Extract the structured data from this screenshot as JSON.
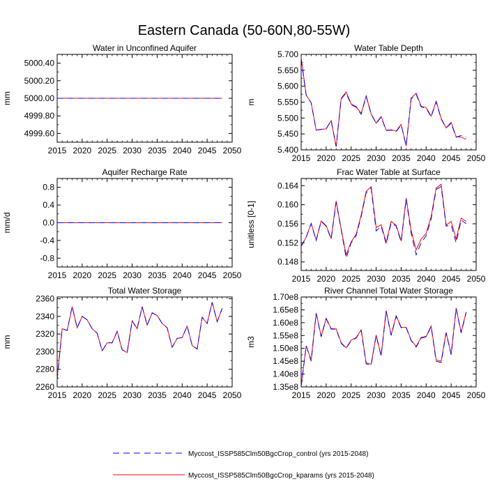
{
  "figure": {
    "title": "Eastern Canada (50-60N,80-55W)"
  },
  "legend": {
    "entries": [
      {
        "label": "Myccost_ISSP585Clm50BgcCrop_control (yrs 2015-2048)",
        "color": "#0000ff",
        "dash": "dashed"
      },
      {
        "label": "Myccost_ISSP585Clm50BgcCrop_kparams (yrs 2015-2048)",
        "color": "#ff0000",
        "dash": "solid"
      }
    ]
  },
  "chart_data": [
    {
      "id": "aquifer",
      "type": "line",
      "title": "Water in Unconfined Aquifer",
      "xlabel": "",
      "ylabel": "mm",
      "xlim": [
        2015,
        2050
      ],
      "ylim": [
        4999.5,
        5000.5
      ],
      "xticks": [
        2015,
        2020,
        2025,
        2030,
        2035,
        2040,
        2045,
        2050
      ],
      "yticks": [
        4999.6,
        4999.8,
        5000.0,
        5000.2,
        5000.4
      ],
      "ytick_labels": [
        "4999.60",
        "4999.80",
        "5000.00",
        "5000.20",
        "5000.40"
      ],
      "x_start": 2015,
      "series": [
        {
          "name": "Myccost_ISSP585Clm50BgcCrop_control",
          "values": [
            5000,
            5000,
            5000,
            5000,
            5000,
            5000,
            5000,
            5000,
            5000,
            5000,
            5000,
            5000,
            5000,
            5000,
            5000,
            5000,
            5000,
            5000,
            5000,
            5000,
            5000,
            5000,
            5000,
            5000,
            5000,
            5000,
            5000,
            5000,
            5000,
            5000,
            5000,
            5000,
            5000,
            5000
          ]
        },
        {
          "name": "Myccost_ISSP585Clm50BgcCrop_kparams",
          "values": [
            5000,
            5000,
            5000,
            5000,
            5000,
            5000,
            5000,
            5000,
            5000,
            5000,
            5000,
            5000,
            5000,
            5000,
            5000,
            5000,
            5000,
            5000,
            5000,
            5000,
            5000,
            5000,
            5000,
            5000,
            5000,
            5000,
            5000,
            5000,
            5000,
            5000,
            5000,
            5000,
            5000,
            5000
          ]
        }
      ]
    },
    {
      "id": "wtd",
      "type": "line",
      "title": "Water Table Depth",
      "xlabel": "",
      "ylabel": "m",
      "xlim": [
        2015,
        2050
      ],
      "ylim": [
        5.4,
        5.7
      ],
      "xticks": [
        2015,
        2020,
        2025,
        2030,
        2035,
        2040,
        2045,
        2050
      ],
      "yticks": [
        5.4,
        5.45,
        5.5,
        5.55,
        5.6,
        5.65,
        5.7
      ],
      "ytick_labels": [
        "5.400",
        "5.450",
        "5.500",
        "5.550",
        "5.600",
        "5.650",
        "5.700"
      ],
      "x_start": 2015,
      "series": [
        {
          "name": "Myccost_ISSP585Clm50BgcCrop_control",
          "values": [
            5.685,
            5.572,
            5.548,
            5.462,
            5.464,
            5.466,
            5.492,
            5.411,
            5.56,
            5.579,
            5.542,
            5.534,
            5.512,
            5.568,
            5.512,
            5.483,
            5.503,
            5.461,
            5.462,
            5.457,
            5.479,
            5.413,
            5.56,
            5.575,
            5.535,
            5.531,
            5.504,
            5.551,
            5.497,
            5.469,
            5.484,
            5.44,
            5.445,
            5.44
          ]
        },
        {
          "name": "Myccost_ISSP585Clm50BgcCrop_kparams",
          "values": [
            5.69,
            5.572,
            5.548,
            5.462,
            5.465,
            5.466,
            5.492,
            5.41,
            5.562,
            5.582,
            5.544,
            5.536,
            5.514,
            5.57,
            5.513,
            5.484,
            5.505,
            5.462,
            5.463,
            5.459,
            5.48,
            5.412,
            5.563,
            5.578,
            5.537,
            5.533,
            5.506,
            5.553,
            5.499,
            5.469,
            5.487,
            5.441,
            5.44,
            5.433
          ]
        }
      ]
    },
    {
      "id": "recharge",
      "type": "line",
      "title": "Aquifer Recharge Rate",
      "xlabel": "",
      "ylabel": "mm/d",
      "xlim": [
        2015,
        2050
      ],
      "ylim": [
        -1.0,
        1.0
      ],
      "xticks": [
        2015,
        2020,
        2025,
        2030,
        2035,
        2040,
        2045,
        2050
      ],
      "yticks": [
        -0.8,
        -0.4,
        0.0,
        0.4,
        0.8
      ],
      "ytick_labels": [
        "-0.8",
        "-0.4",
        "0.0",
        "0.4",
        "0.8"
      ],
      "x_start": 2015,
      "series": [
        {
          "name": "Myccost_ISSP585Clm50BgcCrop_control",
          "values": [
            0,
            0,
            0,
            0,
            0,
            0,
            0,
            0,
            0,
            0,
            0,
            0,
            0,
            0,
            0,
            0,
            0,
            0,
            0,
            0,
            0,
            0,
            0,
            0,
            0,
            0,
            0,
            0,
            0,
            0,
            0,
            0,
            0,
            0
          ]
        },
        {
          "name": "Myccost_ISSP585Clm50BgcCrop_kparams",
          "values": [
            0,
            0,
            0,
            0,
            0,
            0,
            0,
            0,
            0,
            0,
            0,
            0,
            0,
            0,
            0,
            0,
            0,
            0,
            0,
            0,
            0,
            0,
            0,
            0,
            0,
            0,
            0,
            0,
            0,
            0,
            0,
            0,
            0,
            0
          ]
        }
      ]
    },
    {
      "id": "fwt",
      "type": "line",
      "title": "Frac Water Table at Surface",
      "xlabel": "",
      "ylabel": "unitless [0-1]",
      "xlim": [
        2015,
        2050
      ],
      "ylim": [
        0.1462,
        0.1655
      ],
      "xticks": [
        2015,
        2020,
        2025,
        2030,
        2035,
        2040,
        2045,
        2050
      ],
      "yticks": [
        0.148,
        0.152,
        0.156,
        0.16,
        0.164
      ],
      "ytick_labels": [
        "0.148",
        "0.152",
        "0.156",
        "0.160",
        "0.164"
      ],
      "x_start": 2015,
      "series": [
        {
          "name": "Myccost_ISSP585Clm50BgcCrop_control",
          "values": [
            0.1513,
            0.1532,
            0.156,
            0.1525,
            0.1565,
            0.1555,
            0.1528,
            0.1605,
            0.1548,
            0.1488,
            0.152,
            0.1535,
            0.1575,
            0.1625,
            0.1635,
            0.1545,
            0.1555,
            0.1518,
            0.1562,
            0.1555,
            0.1522,
            0.1612,
            0.154,
            0.1495,
            0.152,
            0.1535,
            0.157,
            0.1632,
            0.1638,
            0.1555,
            0.1558,
            0.152,
            0.1568,
            0.156
          ]
        },
        {
          "name": "Myccost_ISSP585Clm50BgcCrop_kparams",
          "values": [
            0.1512,
            0.1532,
            0.1561,
            0.1526,
            0.1566,
            0.1556,
            0.1529,
            0.1608,
            0.1549,
            0.1495,
            0.1522,
            0.1538,
            0.1578,
            0.1628,
            0.1638,
            0.1552,
            0.1558,
            0.1521,
            0.1565,
            0.1557,
            0.1524,
            0.1614,
            0.1546,
            0.1505,
            0.1528,
            0.154,
            0.1575,
            0.1635,
            0.1643,
            0.1557,
            0.1565,
            0.1528,
            0.1572,
            0.1565
          ]
        }
      ]
    },
    {
      "id": "tws",
      "type": "line",
      "title": "Total Water Storage",
      "xlabel": "",
      "ylabel": "mm",
      "xlim": [
        2015,
        2050
      ],
      "ylim": [
        2260,
        2362
      ],
      "xticks": [
        2015,
        2020,
        2025,
        2030,
        2035,
        2040,
        2045,
        2050
      ],
      "yticks": [
        2260,
        2280,
        2300,
        2320,
        2340,
        2360
      ],
      "ytick_labels": [
        "2260",
        "2280",
        "2300",
        "2320",
        "2340",
        "2360"
      ],
      "x_start": 2015,
      "series": [
        {
          "name": "Myccost_ISSP585Clm50BgcCrop_control",
          "values": [
            2268,
            2326,
            2324,
            2351,
            2327,
            2340,
            2336,
            2326,
            2321,
            2301,
            2310,
            2310,
            2323,
            2302,
            2299,
            2335,
            2326,
            2351,
            2330,
            2344,
            2341,
            2332,
            2327,
            2305,
            2315,
            2316,
            2329,
            2307,
            2303,
            2339,
            2332,
            2356,
            2334,
            2349
          ]
        },
        {
          "name": "Myccost_ISSP585Clm50BgcCrop_kparams",
          "values": [
            2270,
            2326,
            2324,
            2351,
            2327,
            2340,
            2336,
            2326,
            2321,
            2301,
            2310,
            2310,
            2323,
            2302,
            2299,
            2335,
            2326,
            2351,
            2330,
            2344,
            2341,
            2332,
            2327,
            2305,
            2315,
            2316,
            2329,
            2307,
            2303,
            2339,
            2332,
            2356,
            2334,
            2349
          ]
        }
      ]
    },
    {
      "id": "river",
      "type": "line",
      "title": "River Channel Total Water Storage",
      "xlabel": "",
      "ylabel": "m3",
      "xlim": [
        2015,
        2050
      ],
      "ylim": [
        135000000,
        170000000
      ],
      "xticks": [
        2015,
        2020,
        2025,
        2030,
        2035,
        2040,
        2045,
        2050
      ],
      "yticks": [
        135000000,
        140000000,
        145000000,
        150000000,
        155000000,
        160000000,
        165000000,
        170000000
      ],
      "ytick_labels": [
        "1.35e8",
        "1.40e8",
        "1.45e8",
        "1.50e8",
        "1.55e8",
        "1.60e8",
        "1.65e8",
        "1.70e8"
      ],
      "x_start": 2015,
      "series": [
        {
          "name": "Myccost_ISSP585Clm50BgcCrop_control",
          "values": [
            135000000,
            151000000,
            145000000,
            163500000,
            154500000,
            161500000,
            157500000,
            157500000,
            152000000,
            150000000,
            153000000,
            154000000,
            157000000,
            144000000,
            143500000,
            155000000,
            147000000,
            164500000,
            155000000,
            162500000,
            158000000,
            158000000,
            153000000,
            150500000,
            154000000,
            154500000,
            158500000,
            145000000,
            144500000,
            156000000,
            147500000,
            165500000,
            156000000,
            164000000
          ]
        },
        {
          "name": "Myccost_ISSP585Clm50BgcCrop_kparams",
          "values": [
            135500000,
            151000000,
            145500000,
            163800000,
            154700000,
            161700000,
            157700000,
            157600000,
            152200000,
            150200000,
            153200000,
            154200000,
            157200000,
            144400000,
            143800000,
            155200000,
            147200000,
            164700000,
            155200000,
            162700000,
            158200000,
            158200000,
            153200000,
            150800000,
            154200000,
            154700000,
            158700000,
            145500000,
            145000000,
            156200000,
            147700000,
            165700000,
            156300000,
            164200000
          ]
        }
      ]
    }
  ]
}
